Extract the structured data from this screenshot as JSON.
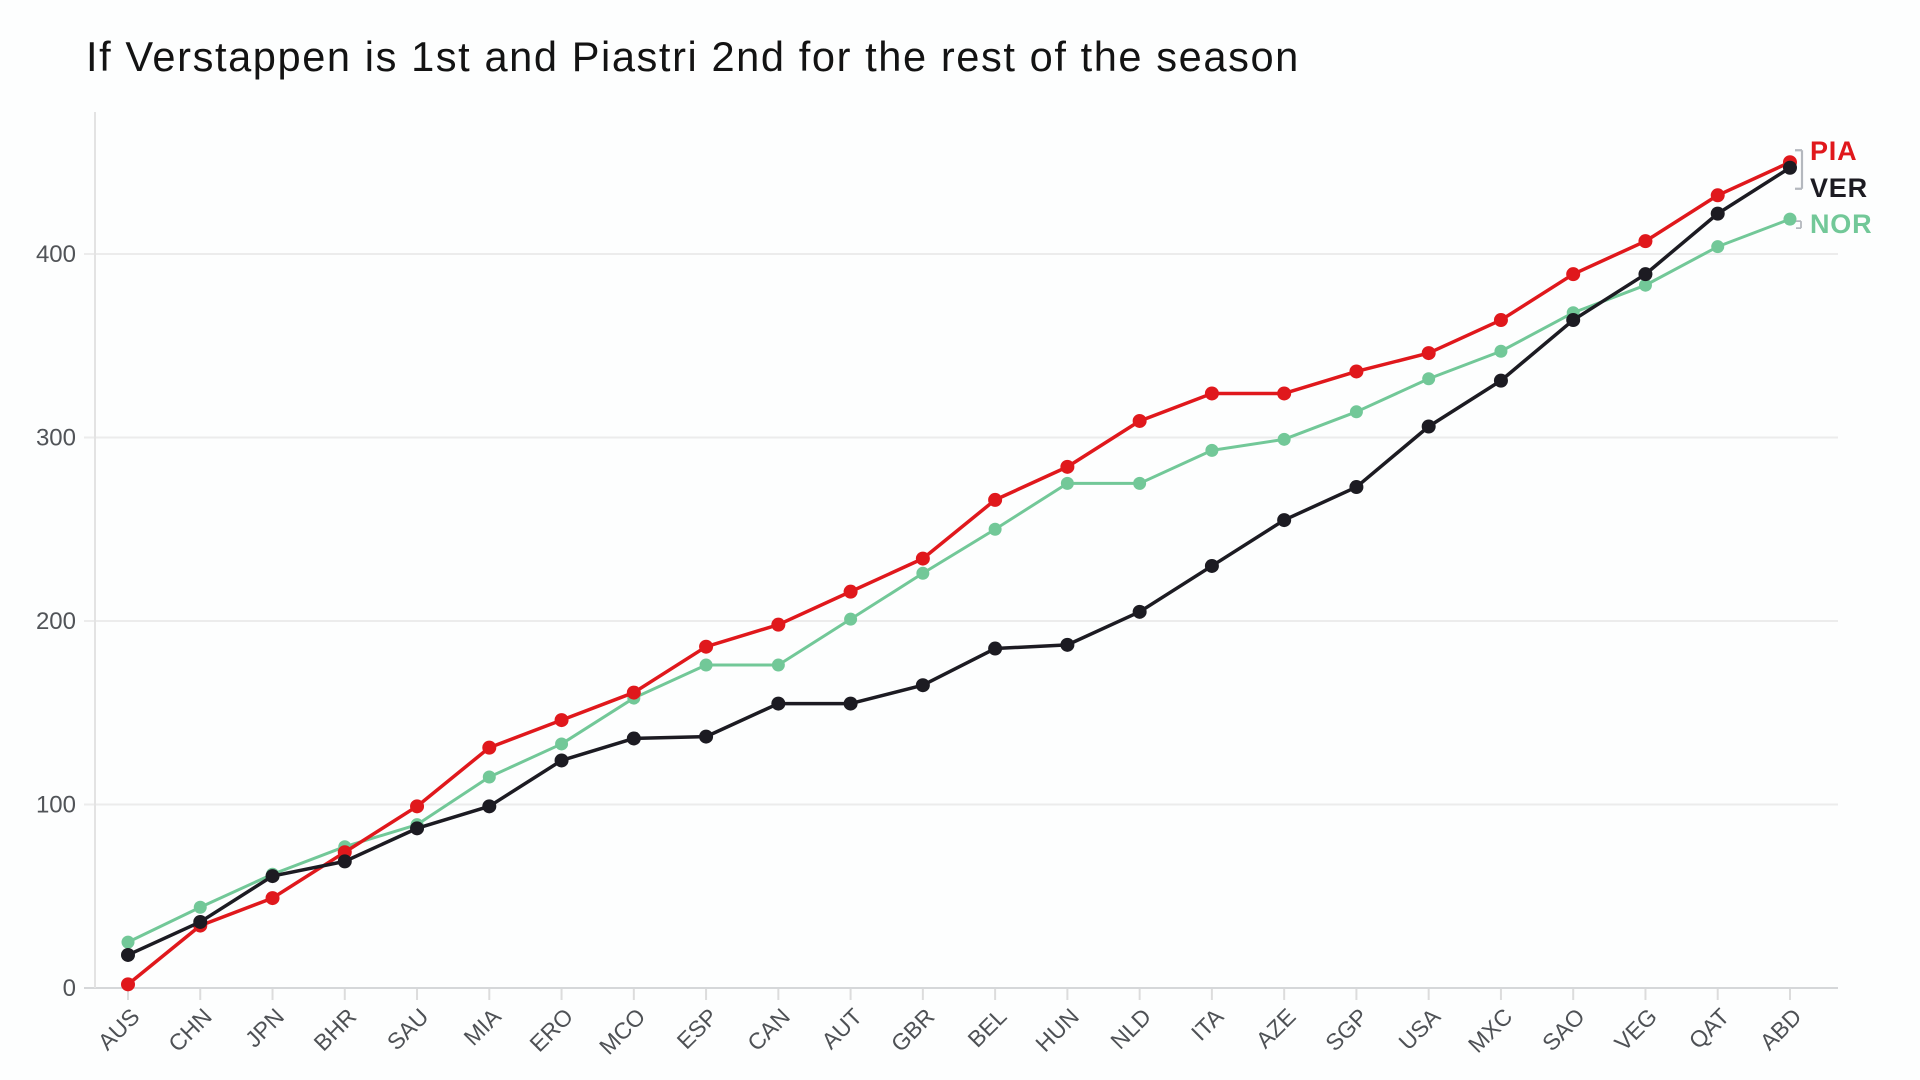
{
  "title": "If Verstappen is 1st and Piastri 2nd for the rest of the season",
  "chart_data": {
    "type": "line",
    "categories": [
      "AUS",
      "CHN",
      "JPN",
      "BHR",
      "SAU",
      "MIA",
      "ERO",
      "MCO",
      "ESP",
      "CAN",
      "AUT",
      "GBR",
      "BEL",
      "HUN",
      "NLD",
      "ITA",
      "AZE",
      "SGP",
      "USA",
      "MXC",
      "SAO",
      "VEG",
      "QAT",
      "ABD"
    ],
    "series": [
      {
        "name": "PIA",
        "color": "#e0181c",
        "values": [
          2,
          34,
          49,
          74,
          99,
          131,
          146,
          161,
          186,
          198,
          216,
          234,
          266,
          284,
          309,
          324,
          324,
          336,
          346,
          364,
          389,
          407,
          432,
          450
        ]
      },
      {
        "name": "VER",
        "color": "#1c1b22",
        "values": [
          18,
          36,
          61,
          69,
          87,
          99,
          124,
          136,
          137,
          155,
          155,
          165,
          185,
          187,
          205,
          230,
          255,
          273,
          306,
          331,
          364,
          389,
          422,
          447
        ]
      },
      {
        "name": "NOR",
        "color": "#72c898",
        "values": [
          25,
          44,
          62,
          77,
          89,
          115,
          133,
          158,
          176,
          176,
          201,
          226,
          250,
          275,
          275,
          293,
          299,
          314,
          332,
          347,
          368,
          383,
          404,
          419
        ]
      }
    ],
    "yticks": [
      0,
      100,
      200,
      300,
      400
    ],
    "ylim": [
      0,
      470
    ],
    "xlabel": "",
    "ylabel": "",
    "grid": "horizontal",
    "legend_position": "right-of-last-points",
    "legend_order": [
      "PIA",
      "VER",
      "NOR"
    ],
    "annotations": {
      "pia_ver_end_gap_bracket": true,
      "nor_end_tick": true,
      "bracket_color": "#b4b8be"
    },
    "axis_text_color": "#515458",
    "gridline_color": "#ececec",
    "baseline_color": "#d5d7d9"
  }
}
